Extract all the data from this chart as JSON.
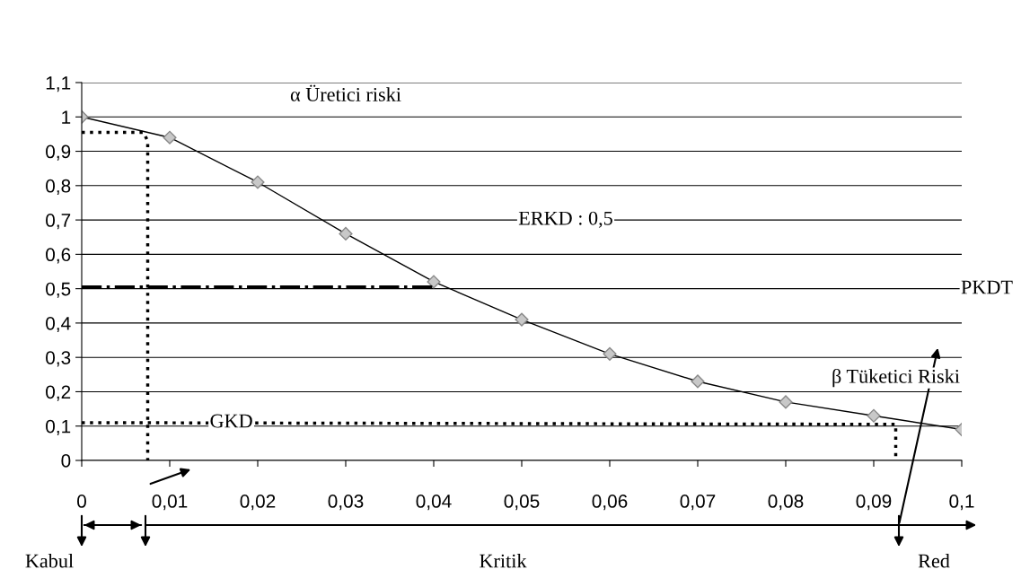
{
  "chart_data": {
    "type": "line",
    "x": [
      0,
      0.01,
      0.02,
      0.03,
      0.04,
      0.05,
      0.06,
      0.07,
      0.08,
      0.09,
      0.1
    ],
    "xlim": [
      0,
      0.1
    ],
    "xticks": [
      0,
      {
        "value": 0.01,
        "label": "0,01"
      },
      {
        "value": 0.02,
        "label": "0,02"
      },
      {
        "value": 0.03,
        "label": "0,03"
      },
      {
        "value": 0.04,
        "label": "0,04"
      },
      {
        "value": 0.05,
        "label": "0,05"
      },
      {
        "value": 0.06,
        "label": "0,06"
      },
      {
        "value": 0.07,
        "label": "0,07"
      },
      {
        "value": 0.08,
        "label": "0,08"
      },
      {
        "value": 0.09,
        "label": "0,09"
      },
      {
        "value": 0.1,
        "label": "0,1"
      }
    ],
    "ylim": [
      0,
      1.1
    ],
    "yticks": [
      0,
      {
        "value": 0.1,
        "label": "0,1"
      },
      {
        "value": 0.2,
        "label": "0,2"
      },
      {
        "value": 0.3,
        "label": "0,3"
      },
      {
        "value": 0.4,
        "label": "0,4"
      },
      {
        "value": 0.5,
        "label": "0,5"
      },
      {
        "value": 0.6,
        "label": "0,6"
      },
      {
        "value": 0.7,
        "label": "0,7"
      },
      {
        "value": 0.8,
        "label": "0,8"
      },
      {
        "value": 0.9,
        "label": "0,9"
      },
      1,
      {
        "value": 1.1,
        "label": "1,1"
      }
    ],
    "grid": "y",
    "series": [
      {
        "color": "#000000",
        "marker": "diamond",
        "line_style": "solid",
        "values": [
          1.0,
          0.94,
          0.81,
          0.66,
          0.52,
          0.41,
          0.31,
          0.23,
          0.17,
          0.13,
          0.09
        ]
      },
      {
        "color": "#000000",
        "marker": "none",
        "line_style": "dotted",
        "x": [
          0,
          0.007,
          0.0075,
          0.0075
        ],
        "values": [
          0.955,
          0.955,
          0.93,
          0
        ]
      },
      {
        "color": "#000000",
        "marker": "none",
        "line_style": "dashdot",
        "x": [
          0,
          0.04
        ],
        "values": [
          0.505,
          0.505
        ]
      },
      {
        "color": "#000000",
        "marker": "none",
        "line_style": "dotted",
        "x": [
          0,
          0.0925,
          0.0925
        ],
        "values": [
          0.11,
          0.105,
          0
        ]
      }
    ],
    "annotations": [
      "α Üretici riski",
      "ERKD : 0,5",
      "PKDT",
      "β Tüketici Riski",
      "GKD",
      "Kabul",
      "Kritik",
      "Red"
    ]
  }
}
